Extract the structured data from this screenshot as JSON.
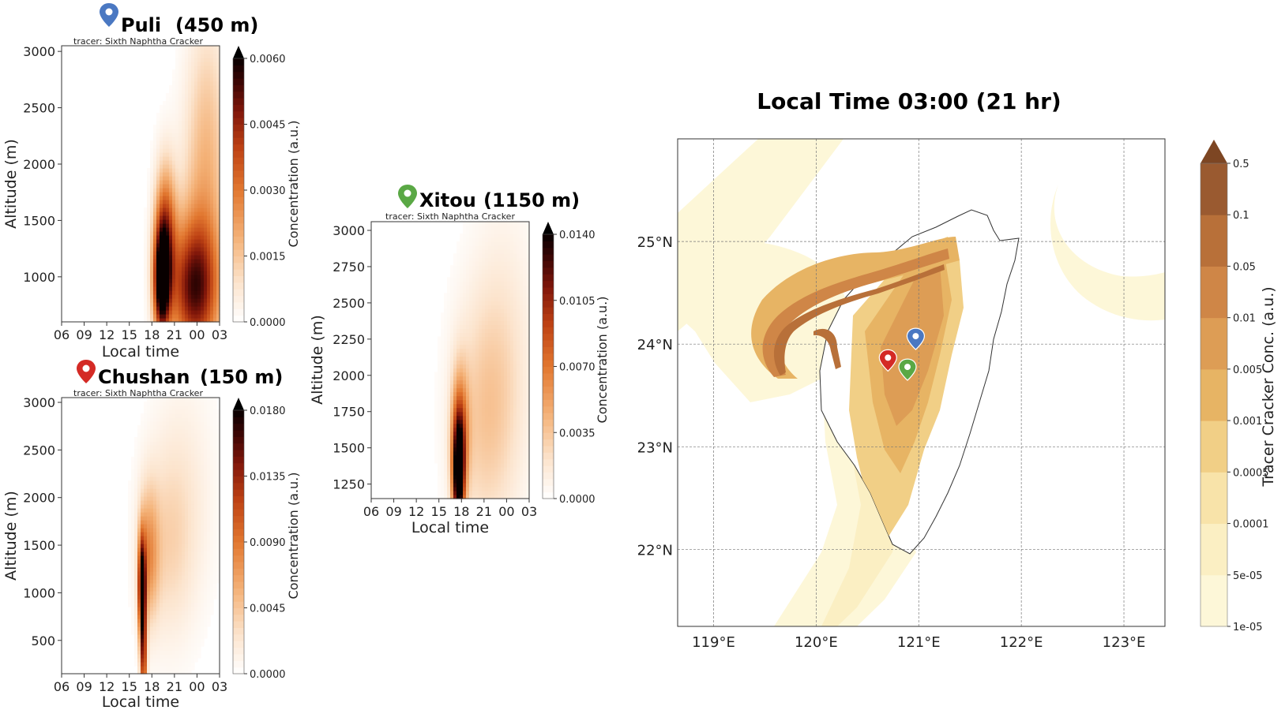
{
  "chart_data": [
    {
      "id": "puli",
      "type": "heatmap",
      "title_name": "Puli",
      "title_alt": "(450 m)",
      "subtitle": "tracer: Sixth Naphtha Cracker",
      "marker_color": "#4a78c2",
      "xlabel": "Local time",
      "ylabel": "Altitude (m)",
      "x_ticks": [
        "06",
        "09",
        "12",
        "15",
        "18",
        "21",
        "00",
        "03"
      ],
      "y_ticks": [
        "1000",
        "1500",
        "2000",
        "2500",
        "3000"
      ],
      "ylim": [
        600,
        3050
      ],
      "colorbar_label": "Concentration (a.u.)",
      "colorbar_ticks": [
        "0.0000",
        "0.0015",
        "0.0030",
        "0.0045",
        "0.0060"
      ],
      "colorbar_max": 0.006,
      "plumes": [
        {
          "x": 19.3,
          "y": 950,
          "sx": 0.75,
          "sy": 330,
          "v": 0.006
        },
        {
          "x": 19.8,
          "y": 1400,
          "sx": 1.0,
          "sy": 420,
          "v": 0.0035
        },
        {
          "x": 23.5,
          "y": 900,
          "sx": 2.3,
          "sy": 420,
          "v": 0.0045
        },
        {
          "x": 25.0,
          "y": 1500,
          "sx": 2.2,
          "sy": 900,
          "v": 0.0016
        },
        {
          "x": 25.5,
          "y": 2500,
          "sx": 1.8,
          "sy": 700,
          "v": 0.0007
        }
      ]
    },
    {
      "id": "chushan",
      "type": "heatmap",
      "title_name": "Chushan",
      "title_alt": "(150 m)",
      "subtitle": "tracer: Sixth Naphtha Cracker",
      "marker_color": "#d42a25",
      "xlabel": "Local time",
      "ylabel": "Altitude (m)",
      "x_ticks": [
        "06",
        "09",
        "12",
        "15",
        "18",
        "21",
        "00",
        "03"
      ],
      "y_ticks": [
        "500",
        "1000",
        "1500",
        "2000",
        "2500",
        "3000"
      ],
      "ylim": [
        150,
        3050
      ],
      "colorbar_label": "Concentration (a.u.)",
      "colorbar_ticks": [
        "0.0000",
        "0.0045",
        "0.0090",
        "0.0135",
        "0.0180"
      ],
      "colorbar_max": 0.018,
      "plumes": [
        {
          "x": 16.7,
          "y": 1050,
          "sx": 0.35,
          "sy": 380,
          "v": 0.018
        },
        {
          "x": 16.9,
          "y": 300,
          "sx": 0.3,
          "sy": 350,
          "v": 0.012
        },
        {
          "x": 17.6,
          "y": 1400,
          "sx": 0.9,
          "sy": 480,
          "v": 0.006
        },
        {
          "x": 20.0,
          "y": 1500,
          "sx": 2.5,
          "sy": 700,
          "v": 0.003
        },
        {
          "x": 22.5,
          "y": 2100,
          "sx": 3.0,
          "sy": 900,
          "v": 0.0015
        }
      ]
    },
    {
      "id": "xitou",
      "type": "heatmap",
      "title_name": "Xitou",
      "title_alt": "(1150 m)",
      "subtitle": "tracer: Sixth Naphtha Cracker",
      "marker_color": "#5aa845",
      "xlabel": "Local time",
      "ylabel": "Altitude (m)",
      "x_ticks": [
        "06",
        "09",
        "12",
        "15",
        "18",
        "21",
        "00",
        "03"
      ],
      "y_ticks": [
        "1250",
        "1500",
        "1750",
        "2000",
        "2250",
        "2500",
        "2750",
        "3000"
      ],
      "ylim": [
        1150,
        3060
      ],
      "colorbar_label": "Concentration (a.u.)",
      "colorbar_ticks": [
        "0.0000",
        "0.0035",
        "0.0070",
        "0.0105",
        "0.0140"
      ],
      "colorbar_max": 0.014,
      "plumes": [
        {
          "x": 17.6,
          "y": 1300,
          "sx": 0.55,
          "sy": 260,
          "v": 0.014
        },
        {
          "x": 17.8,
          "y": 1600,
          "sx": 0.8,
          "sy": 300,
          "v": 0.007
        },
        {
          "x": 21.0,
          "y": 1700,
          "sx": 3.0,
          "sy": 600,
          "v": 0.003
        },
        {
          "x": 24.0,
          "y": 2200,
          "sx": 3.0,
          "sy": 700,
          "v": 0.0014
        }
      ]
    },
    {
      "id": "map",
      "type": "heatmap",
      "title": "Local Time 03:00 (21 hr)",
      "x_ticks": [
        "119°E",
        "120°E",
        "121°E",
        "122°E",
        "123°E"
      ],
      "y_ticks": [
        "22°N",
        "23°N",
        "24°N",
        "25°N"
      ],
      "xlim": [
        118.65,
        123.4
      ],
      "ylim": [
        21.25,
        26.0
      ],
      "colorbar_label": "Tracer Cracker Conc. (a.u.)",
      "colorbar_levels": [
        "1e-05",
        "5e-05",
        "0.0001",
        "0.0005",
        "0.001",
        "0.005",
        "0.01",
        "0.05",
        "0.1",
        "0.5"
      ],
      "colorbar_colors": [
        "#fdf7d8",
        "#fbefc3",
        "#f8e3a9",
        "#f1cf86",
        "#e7b464",
        "#dd9d55",
        "#cf8647",
        "#b87039",
        "#9a5a30"
      ],
      "colorbar_extend_color": "#7d4623",
      "sites": [
        {
          "name": "Puli",
          "lon": 120.97,
          "lat": 23.97,
          "color": "#4a78c2"
        },
        {
          "name": "Chushan",
          "lon": 120.7,
          "lat": 23.76,
          "color": "#d42a25"
        },
        {
          "name": "Xitou",
          "lon": 120.89,
          "lat": 23.67,
          "color": "#5aa845"
        }
      ]
    }
  ]
}
